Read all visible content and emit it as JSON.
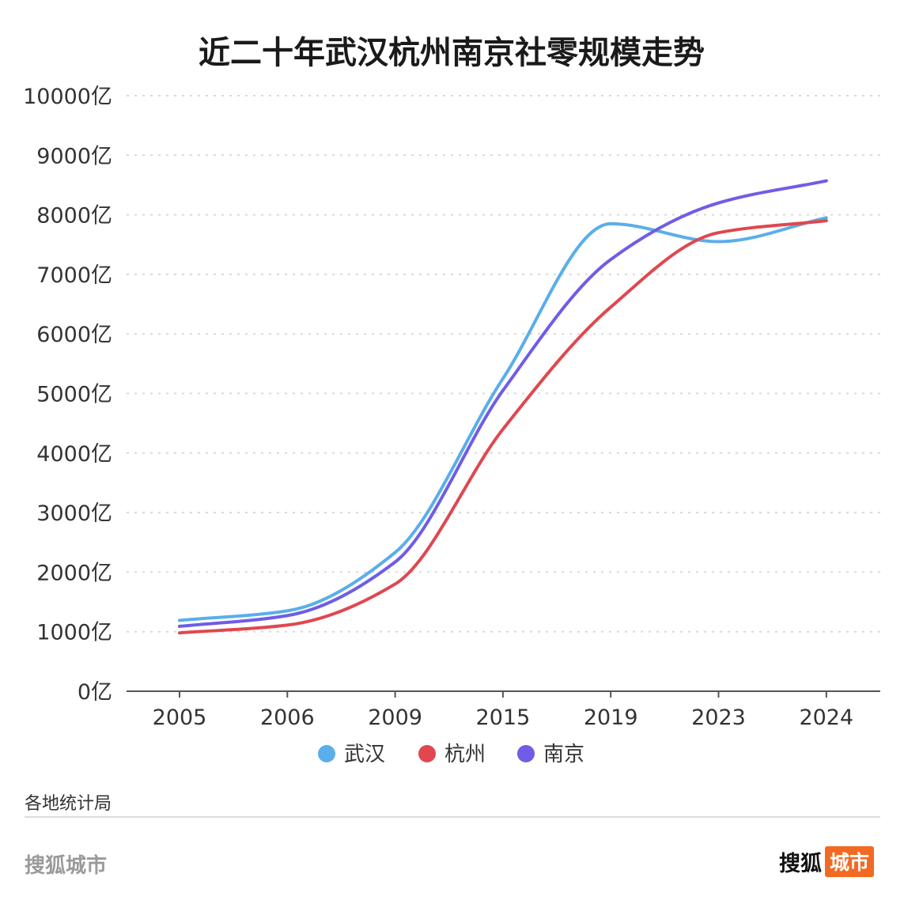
{
  "chart_data": {
    "type": "line",
    "title": "近二十年武汉杭州南京社零规模走势",
    "categories": [
      "2005",
      "2006",
      "2009",
      "2015",
      "2019",
      "2023",
      "2024"
    ],
    "y_tick_labels": [
      "0亿",
      "1000亿",
      "2000亿",
      "3000亿",
      "4000亿",
      "5000亿",
      "6000亿",
      "7000亿",
      "8000亿",
      "9000亿",
      "10000亿"
    ],
    "ylim": [
      0,
      10000
    ],
    "grid": true,
    "legend_position": "bottom-center",
    "smooth": true,
    "series": [
      {
        "name": "武汉",
        "color": "#5aaeea",
        "values": [
          1190,
          1350,
          2330,
          5250,
          7850,
          7550,
          7950
        ]
      },
      {
        "name": "杭州",
        "color": "#e0474f",
        "values": [
          980,
          1110,
          1800,
          4400,
          6450,
          7700,
          7900
        ]
      },
      {
        "name": "南京",
        "color": "#6f5de6",
        "values": [
          1090,
          1270,
          2170,
          5050,
          7250,
          8200,
          8570
        ]
      }
    ]
  },
  "source": "各地统计局",
  "footer": {
    "left_text": "搜狐城市",
    "logo_main": "搜狐",
    "logo_badge": "城市"
  }
}
